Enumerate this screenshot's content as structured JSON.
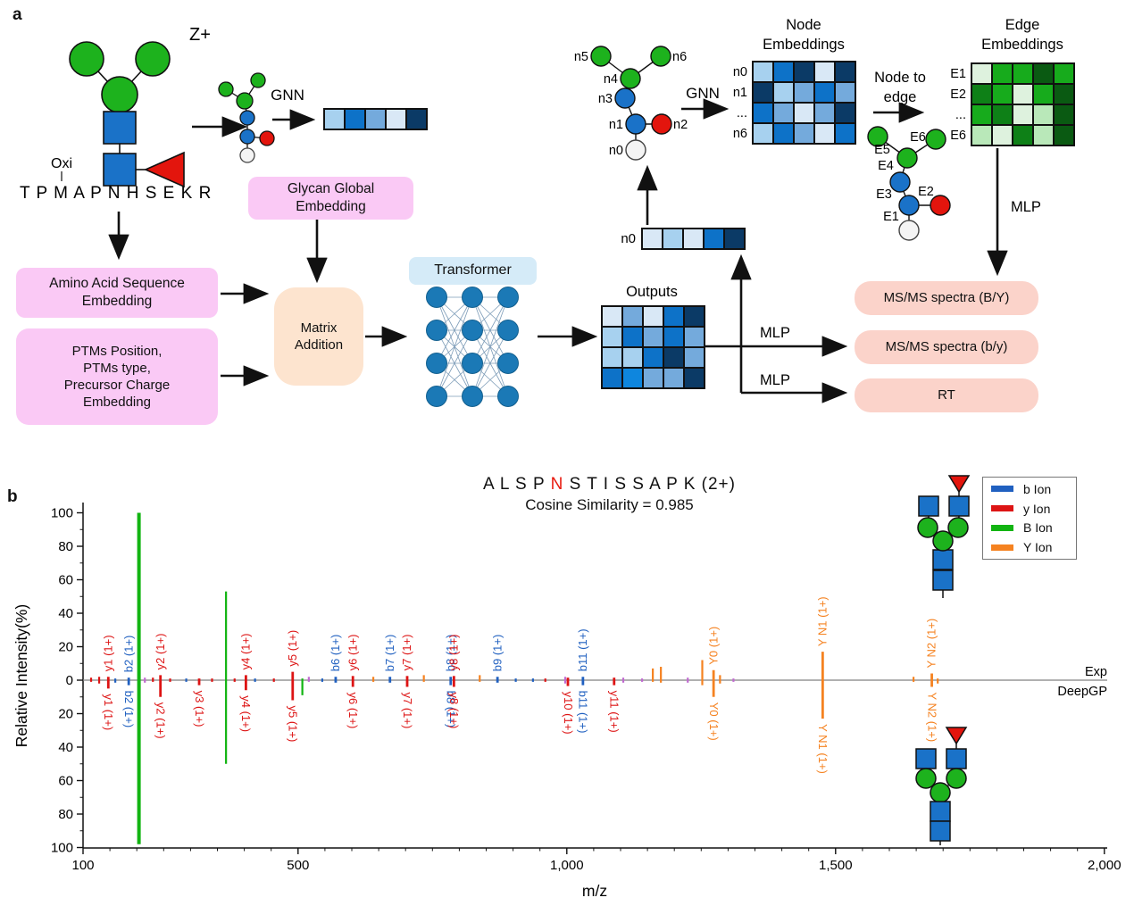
{
  "panel_a": {
    "label": "a",
    "z_plus": "Z+",
    "oxi": "Oxi",
    "sequence": "T P M A P N H S E K R",
    "gnn1": "GNN",
    "gnn2": "GNN",
    "outputs_title": "Outputs",
    "node_to_edge_l1": "Node to",
    "node_to_edge_l2": "edge",
    "node_title_l1": "Node",
    "node_title_l2": "Embeddings",
    "edge_title_l1": "Edge",
    "edge_title_l2": "Embeddings",
    "mlp1": "MLP",
    "mlp2": "MLP",
    "mlp3": "MLP",
    "n0_vec_label": "n0",
    "boxes": {
      "glycan_global_l1": "Glycan Global",
      "glycan_global_l2": "Embedding",
      "amino_l1": "Amino Acid Sequence",
      "amino_l2": "Embedding",
      "ptms_lines": [
        "PTMs Position,",
        "PTMs type,",
        "Precursor Charge",
        "Embedding"
      ],
      "matrix_l1": "Matrix",
      "matrix_l2": "Addition",
      "transformer": "Transformer",
      "msms_BY": "MS/MS spectra (B/Y)",
      "msms_by": "MS/MS spectra (b/y)",
      "rt": "RT"
    },
    "node_labels": [
      "n0",
      "n1",
      "n2",
      "n3",
      "n4",
      "n5",
      "n6"
    ],
    "node_row_labels": [
      "n0",
      "n1",
      "...",
      "n6"
    ],
    "edge_labels": [
      "E1",
      "E2",
      "E3",
      "E4",
      "E5",
      "E6"
    ],
    "edge_row_labels": [
      "E1",
      "E2",
      "...",
      "E6"
    ],
    "palettes": {
      "blue": [
        "#d9e8f6",
        "#a7d1ef",
        "#74aadc",
        "#0d72c8",
        "#0b3a66",
        "#0e86de"
      ],
      "green": [
        "#def2de",
        "#b9e8b9",
        "#17ab1c",
        "#0e8017",
        "#0a5a12"
      ]
    },
    "matrices": {
      "glycan_vector": {
        "palette": "blue",
        "grid": [
          [
            1,
            3,
            2,
            0,
            4
          ]
        ]
      },
      "n0_vector": {
        "palette": "blue",
        "grid": [
          [
            0,
            1,
            0,
            3,
            4
          ]
        ]
      },
      "node": {
        "palette": "blue",
        "grid": [
          [
            1,
            3,
            4,
            0,
            4
          ],
          [
            4,
            1,
            2,
            3,
            2
          ],
          [
            3,
            2,
            0,
            2,
            4
          ],
          [
            1,
            3,
            2,
            0,
            3
          ]
        ]
      },
      "outputs": {
        "palette": "blue",
        "grid": [
          [
            0,
            2,
            0,
            3,
            4
          ],
          [
            1,
            3,
            2,
            3,
            2
          ],
          [
            1,
            1,
            3,
            4,
            2
          ],
          [
            3,
            5,
            2,
            2,
            4
          ]
        ]
      },
      "edge": {
        "palette": "green",
        "grid": [
          [
            0,
            2,
            2,
            4,
            2
          ],
          [
            3,
            2,
            0,
            2,
            4
          ],
          [
            2,
            3,
            0,
            1,
            4
          ],
          [
            1,
            0,
            3,
            1,
            4
          ]
        ]
      }
    }
  },
  "panel_b": {
    "label": "b",
    "title": {
      "pre": "A L S P ",
      "highlight": "N",
      "post": " S T I S S A P K ",
      "charge": "(2+)",
      "highlight_color": "#e8190e"
    },
    "subtitle": "Cosine Similarity = 0.985",
    "legend": [
      {
        "label": "b Ion",
        "color": "#2060c0"
      },
      {
        "label": "y Ion",
        "color": "#dd1414"
      },
      {
        "label": "B Ion",
        "color": "#12b412"
      },
      {
        "label": "Y Ion",
        "color": "#f58220"
      }
    ],
    "exp_label": "Exp",
    "pred_label": "DeepGP"
  },
  "chart_data": {
    "type": "bar",
    "subtype": "mirror-mass-spectrum",
    "title": "A L S P N S T I S S A P K (2+)",
    "subtitle": "Cosine Similarity = 0.985",
    "xlabel": "m/z",
    "ylabel": "Relative Intensity(%)",
    "xlim": [
      100,
      2000
    ],
    "ylim": [
      -100,
      100
    ],
    "x_ticks": [
      100,
      500,
      1000,
      1500,
      2000
    ],
    "x_tick_labels": [
      "100",
      "500",
      "1,000",
      "1,500",
      "2,000"
    ],
    "y_tick_step_major": 20,
    "y_tick_step_minor": 10,
    "series": [
      {
        "name": "Exp",
        "direction": "up"
      },
      {
        "name": "DeepGP",
        "direction": "down"
      }
    ],
    "legend_position": "upper right",
    "ion_colors": {
      "b": "#2060c0",
      "y": "#dd1414",
      "B": "#12b412",
      "Y": "#f58220",
      "other": "#c06ad0"
    },
    "peaks": [
      {
        "mz": 115,
        "ion": "y",
        "exp": 1.5,
        "pred": 1
      },
      {
        "mz": 130,
        "ion": "y",
        "exp": 2,
        "pred": 2
      },
      {
        "mz": 147,
        "ion": "y",
        "exp": 2,
        "pred": 5,
        "label": "y1 (1+)",
        "lt": true,
        "lb": true
      },
      {
        "mz": 160,
        "ion": "b",
        "exp": 1,
        "pred": 1.5
      },
      {
        "mz": 185,
        "ion": "b",
        "exp": 1.5,
        "pred": 3,
        "label": "b2 (1+)",
        "lt": true,
        "lb": true
      },
      {
        "mz": 204,
        "ion": "B",
        "exp": 100,
        "pred": 98
      },
      {
        "mz": 215,
        "ion": "other",
        "exp": 1.5,
        "pred": 1.5
      },
      {
        "mz": 230,
        "ion": "y",
        "exp": 1.5,
        "pred": 1
      },
      {
        "mz": 244,
        "ion": "y",
        "exp": 3,
        "pred": 10,
        "label": "y2 (1+)",
        "lt": true,
        "lb": true
      },
      {
        "mz": 262,
        "ion": "y",
        "exp": 1,
        "pred": 1
      },
      {
        "mz": 292,
        "ion": "b",
        "exp": 1,
        "pred": 1
      },
      {
        "mz": 316,
        "ion": "y",
        "exp": 1,
        "pred": 3,
        "label": "y3 (1+)",
        "lb": true
      },
      {
        "mz": 340,
        "ion": "y",
        "exp": 1,
        "pred": 1
      },
      {
        "mz": 366,
        "ion": "B",
        "exp": 53,
        "pred": 50
      },
      {
        "mz": 382,
        "ion": "y",
        "exp": 1,
        "pred": 1
      },
      {
        "mz": 403,
        "ion": "y",
        "exp": 3,
        "pred": 6,
        "label": "y4 (1+)",
        "lt": true,
        "lb": true
      },
      {
        "mz": 420,
        "ion": "b",
        "exp": 1,
        "pred": 1
      },
      {
        "mz": 455,
        "ion": "y",
        "exp": 1,
        "pred": 1
      },
      {
        "mz": 490,
        "ion": "y",
        "exp": 5,
        "pred": 12,
        "label": "y5 (1+)",
        "lt": true,
        "lb": true
      },
      {
        "mz": 508,
        "ion": "B",
        "exp": 1,
        "pred": 9
      },
      {
        "mz": 520,
        "ion": "other",
        "exp": 2,
        "pred": 1
      },
      {
        "mz": 545,
        "ion": "b",
        "exp": 1,
        "pred": 1
      },
      {
        "mz": 570,
        "ion": "b",
        "exp": 2,
        "pred": 1.5,
        "label": "b6 (1+)",
        "lt": true
      },
      {
        "mz": 602,
        "ion": "y",
        "exp": 2.5,
        "pred": 4,
        "label": "y6 (1+)",
        "lt": true,
        "lb": true
      },
      {
        "mz": 640,
        "ion": "Y",
        "exp": 2,
        "pred": 1
      },
      {
        "mz": 671,
        "ion": "b",
        "exp": 2,
        "pred": 1.5,
        "label": "b7 (1+)",
        "lt": true
      },
      {
        "mz": 703,
        "ion": "y",
        "exp": 2.5,
        "pred": 4,
        "label": "y7 (1+)",
        "lt": true,
        "lb": true
      },
      {
        "mz": 734,
        "ion": "Y",
        "exp": 3,
        "pred": 1
      },
      {
        "mz": 784,
        "ion": "b",
        "exp": 2,
        "pred": 3,
        "label": "b8 (1+)",
        "lt": true,
        "lb": true
      },
      {
        "mz": 790,
        "ion": "y",
        "exp": 2.5,
        "pred": 4,
        "label": "y8 (1+)",
        "lt": true,
        "lb": true
      },
      {
        "mz": 838,
        "ion": "Y",
        "exp": 3,
        "pred": 1
      },
      {
        "mz": 871,
        "ion": "b",
        "exp": 2,
        "pred": 1.5,
        "label": "b9 (1+)",
        "lt": true
      },
      {
        "mz": 905,
        "ion": "b",
        "exp": 1,
        "pred": 1
      },
      {
        "mz": 937,
        "ion": "b",
        "exp": 1,
        "pred": 1
      },
      {
        "mz": 960,
        "ion": "y",
        "exp": 1,
        "pred": 1
      },
      {
        "mz": 1002,
        "ion": "y",
        "exp": 1.5,
        "pred": 3.5,
        "label": "y10 (1+)",
        "lb": true
      },
      {
        "mz": 997,
        "ion": "other",
        "exp": 2,
        "pred": 2
      },
      {
        "mz": 1030,
        "ion": "b",
        "exp": 2,
        "pred": 3,
        "label": "b11 (1+)",
        "lt": true,
        "lb": true
      },
      {
        "mz": 1088,
        "ion": "y",
        "exp": 1.5,
        "pred": 3,
        "label": "y11 (1+)",
        "lb": true
      },
      {
        "mz": 1105,
        "ion": "other",
        "exp": 1.5,
        "pred": 1.5
      },
      {
        "mz": 1140,
        "ion": "other",
        "exp": 1,
        "pred": 1
      },
      {
        "mz": 1160,
        "ion": "Y",
        "exp": 7,
        "pred": 1
      },
      {
        "mz": 1175,
        "ion": "Y",
        "exp": 8,
        "pred": 1.5
      },
      {
        "mz": 1225,
        "ion": "other",
        "exp": 1.5,
        "pred": 1.5
      },
      {
        "mz": 1252,
        "ion": "Y",
        "exp": 12,
        "pred": 3
      },
      {
        "mz": 1273,
        "ion": "Y",
        "exp": 6,
        "pred": 10,
        "label": "Y0 (1+)",
        "lt": true,
        "lb": true
      },
      {
        "mz": 1285,
        "ion": "Y",
        "exp": 3,
        "pred": 2
      },
      {
        "mz": 1310,
        "ion": "other",
        "exp": 1,
        "pred": 1
      },
      {
        "mz": 1476,
        "ion": "Y",
        "exp": 17,
        "pred": 23,
        "label": "Y N1 (1+)",
        "lt": true,
        "lb": true
      },
      {
        "mz": 1645,
        "ion": "Y",
        "exp": 2,
        "pred": 1
      },
      {
        "mz": 1679,
        "ion": "Y",
        "exp": 4,
        "pred": 4,
        "label": "Y N2 (1+)",
        "lt": true,
        "lb": true
      },
      {
        "mz": 1690,
        "ion": "Y",
        "exp": 1,
        "pred": 2
      }
    ]
  }
}
